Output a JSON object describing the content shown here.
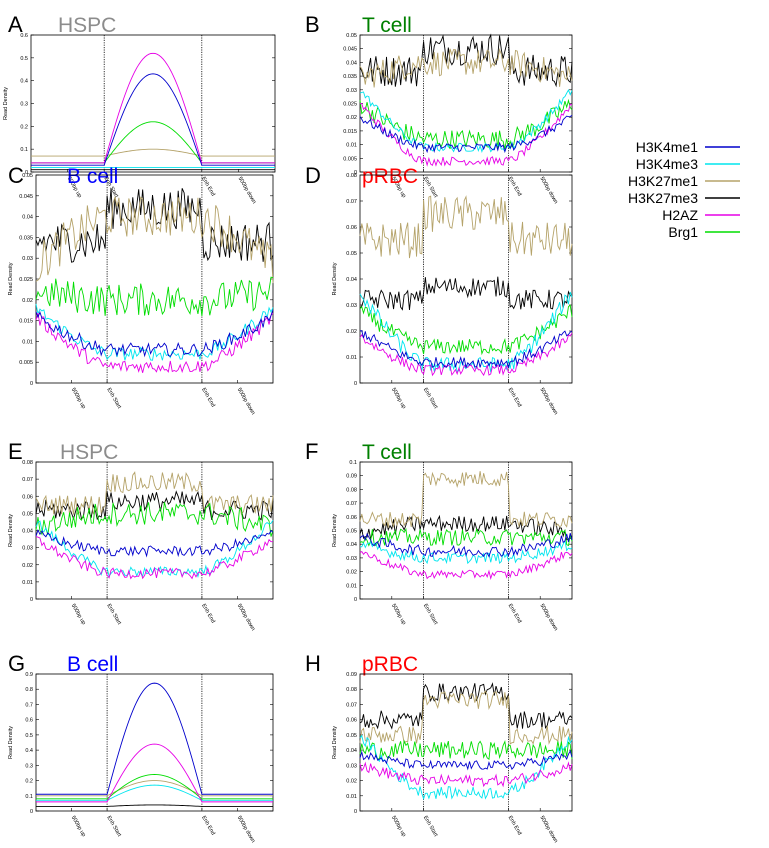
{
  "chart_data": [
    {
      "panel": "A",
      "title": "HSPC",
      "title_color": "#8c8c8c",
      "type": "line",
      "ylabel": "Read Density",
      "ylim": [
        0,
        0.6
      ],
      "yticks": [
        0,
        0.1,
        0.2,
        0.3,
        0.4,
        0.5,
        0.6
      ],
      "x_tick_labels": [
        "500bp up",
        "Enh Start",
        "Enh End",
        "500bp down"
      ],
      "enh_region": [
        30,
        70
      ],
      "series": [
        {
          "key": "H3K4me1",
          "profile": "bump",
          "flank": 0.03,
          "peak": 0.43,
          "noise": 0
        },
        {
          "key": "H3K4me3",
          "profile": "bump",
          "flank": 0.02,
          "peak": 0.02,
          "noise": 0
        },
        {
          "key": "H3K27me1",
          "profile": "bump",
          "flank": 0.07,
          "peak": 0.1,
          "noise": 0
        },
        {
          "key": "H3K27me3",
          "profile": "bump",
          "flank": 0.01,
          "peak": 0.01,
          "noise": 0
        },
        {
          "key": "H2AZ",
          "profile": "bump",
          "flank": 0.04,
          "peak": 0.52,
          "noise": 0
        },
        {
          "key": "Brg1",
          "profile": "bump",
          "flank": 0.04,
          "peak": 0.22,
          "noise": 0
        }
      ]
    },
    {
      "panel": "B",
      "title": "T cell",
      "title_color": "#008000",
      "type": "line",
      "ylabel": "",
      "ylim": [
        0,
        0.05
      ],
      "yticks": [
        0,
        0.005,
        0.01,
        0.015,
        0.02,
        0.025,
        0.03,
        0.035,
        0.04,
        0.045,
        0.05
      ],
      "x_tick_labels": [
        "500bp up",
        "Enh Start",
        "Enh End",
        "500bp down"
      ],
      "enh_region": [
        30,
        70
      ],
      "series": [
        {
          "key": "H3K4me1",
          "profile": "valley",
          "flank": 0.02,
          "peak": 0.009,
          "noise": 0.0008
        },
        {
          "key": "H3K4me3",
          "profile": "valley",
          "flank": 0.03,
          "peak": 0.009,
          "noise": 0.0008
        },
        {
          "key": "H3K27me1",
          "profile": "valley",
          "flank": 0.034,
          "peak": 0.04,
          "noise": 0.0025
        },
        {
          "key": "H3K27me3",
          "profile": "flat",
          "flank": 0.037,
          "peak": 0.045,
          "noise": 0.003
        },
        {
          "key": "H2AZ",
          "profile": "valley",
          "flank": 0.025,
          "peak": 0.004,
          "noise": 0.0008
        },
        {
          "key": "Brg1",
          "profile": "valley",
          "flank": 0.025,
          "peak": 0.012,
          "noise": 0.0018
        }
      ]
    },
    {
      "panel": "C",
      "title": "B cell",
      "title_color": "#0000ff",
      "type": "line",
      "ylabel": "Read Density",
      "ylim": [
        0,
        0.05
      ],
      "yticks": [
        0,
        0.005,
        0.01,
        0.015,
        0.02,
        0.025,
        0.03,
        0.035,
        0.04,
        0.045,
        0.05
      ],
      "x_tick_labels": [
        "500bp up",
        "Enh Start",
        "Enh End",
        "500bp down"
      ],
      "enh_region": [
        30,
        70
      ],
      "series": [
        {
          "key": "H3K4me1",
          "profile": "valley",
          "flank": 0.016,
          "peak": 0.008,
          "noise": 0.0008
        },
        {
          "key": "H3K4me3",
          "profile": "valley",
          "flank": 0.018,
          "peak": 0.007,
          "noise": 0.0008
        },
        {
          "key": "H3K27me1",
          "profile": "valley",
          "flank": 0.028,
          "peak": 0.04,
          "noise": 0.0025
        },
        {
          "key": "H3K27me3",
          "profile": "flat",
          "flank": 0.034,
          "peak": 0.042,
          "noise": 0.0025
        },
        {
          "key": "H2AZ",
          "profile": "valley",
          "flank": 0.016,
          "peak": 0.004,
          "noise": 0.0008
        },
        {
          "key": "Brg1",
          "profile": "valley",
          "flank": 0.022,
          "peak": 0.02,
          "noise": 0.002
        }
      ]
    },
    {
      "panel": "D",
      "title": "pRBC",
      "title_color": "#ff0000",
      "type": "line",
      "ylabel": "Read Density",
      "ylim": [
        0,
        0.08
      ],
      "yticks": [
        0,
        0.01,
        0.02,
        0.03,
        0.04,
        0.05,
        0.06,
        0.07,
        0.08
      ],
      "x_tick_labels": [
        "500bp up",
        "Enh Start",
        "Enh End",
        "500bp down"
      ],
      "enh_region": [
        30,
        70
      ],
      "series": [
        {
          "key": "H3K4me1",
          "profile": "valley",
          "flank": 0.02,
          "peak": 0.008,
          "noise": 0.001
        },
        {
          "key": "H3K4me3",
          "profile": "valley",
          "flank": 0.035,
          "peak": 0.007,
          "noise": 0.0015
        },
        {
          "key": "H3K27me1",
          "profile": "flat",
          "flank": 0.055,
          "peak": 0.065,
          "noise": 0.0035
        },
        {
          "key": "H3K27me3",
          "profile": "flat",
          "flank": 0.032,
          "peak": 0.037,
          "noise": 0.002
        },
        {
          "key": "H2AZ",
          "profile": "valley",
          "flank": 0.018,
          "peak": 0.005,
          "noise": 0.001
        },
        {
          "key": "Brg1",
          "profile": "valley",
          "flank": 0.028,
          "peak": 0.014,
          "noise": 0.0015
        }
      ]
    },
    {
      "panel": "E",
      "title": "HSPC",
      "title_color": "#8c8c8c",
      "type": "line",
      "ylabel": "Read Density",
      "ylim": [
        0,
        0.08
      ],
      "yticks": [
        0,
        0.01,
        0.02,
        0.03,
        0.04,
        0.05,
        0.06,
        0.07,
        0.08
      ],
      "x_tick_labels": [
        "500bp up",
        "Enh Start",
        "Enh End",
        "500bp down"
      ],
      "enh_region": [
        30,
        70
      ],
      "series": [
        {
          "key": "H3K4me1",
          "profile": "valley",
          "flank": 0.038,
          "peak": 0.028,
          "noise": 0.0015
        },
        {
          "key": "H3K4me3",
          "profile": "valley",
          "flank": 0.045,
          "peak": 0.016,
          "noise": 0.0015
        },
        {
          "key": "H3K27me1",
          "profile": "flat",
          "flank": 0.055,
          "peak": 0.068,
          "noise": 0.003
        },
        {
          "key": "H3K27me3",
          "profile": "flat",
          "flank": 0.052,
          "peak": 0.057,
          "noise": 0.003
        },
        {
          "key": "H2AZ",
          "profile": "valley",
          "flank": 0.035,
          "peak": 0.015,
          "noise": 0.0015
        },
        {
          "key": "Brg1",
          "profile": "valley",
          "flank": 0.042,
          "peak": 0.05,
          "noise": 0.0035
        }
      ]
    },
    {
      "panel": "F",
      "title": "T cell",
      "title_color": "#008000",
      "type": "line",
      "ylabel": "Read Density",
      "ylim": [
        0,
        0.1
      ],
      "yticks": [
        0,
        0.01,
        0.02,
        0.03,
        0.04,
        0.05,
        0.06,
        0.07,
        0.08,
        0.09,
        0.1
      ],
      "x_tick_labels": [
        "500bp up",
        "Enh Start",
        "Enh End",
        "500bp down"
      ],
      "enh_region": [
        30,
        70
      ],
      "series": [
        {
          "key": "H3K4me1",
          "profile": "valley",
          "flank": 0.045,
          "peak": 0.035,
          "noise": 0.002
        },
        {
          "key": "H3K4me3",
          "profile": "valley",
          "flank": 0.04,
          "peak": 0.03,
          "noise": 0.002
        },
        {
          "key": "H3K27me1",
          "profile": "flat",
          "flank": 0.058,
          "peak": 0.088,
          "noise": 0.003
        },
        {
          "key": "H3K27me3",
          "profile": "valley",
          "flank": 0.048,
          "peak": 0.055,
          "noise": 0.003
        },
        {
          "key": "H2AZ",
          "profile": "valley",
          "flank": 0.035,
          "peak": 0.018,
          "noise": 0.0015
        },
        {
          "key": "Brg1",
          "profile": "valley",
          "flank": 0.045,
          "peak": 0.045,
          "noise": 0.003
        }
      ]
    },
    {
      "panel": "G",
      "title": "B cell",
      "title_color": "#0000ff",
      "type": "line",
      "ylabel": "Read Density",
      "ylim": [
        0,
        0.9
      ],
      "yticks": [
        0,
        0.1,
        0.2,
        0.3,
        0.4,
        0.5,
        0.6,
        0.7,
        0.8,
        0.9
      ],
      "x_tick_labels": [
        "500bp up",
        "Enh Start",
        "Enh End",
        "500bp down"
      ],
      "enh_region": [
        30,
        70
      ],
      "series": [
        {
          "key": "H3K4me1",
          "profile": "bump",
          "flank": 0.11,
          "peak": 0.84,
          "noise": 0
        },
        {
          "key": "H3K4me3",
          "profile": "bump",
          "flank": 0.07,
          "peak": 0.17,
          "noise": 0
        },
        {
          "key": "H3K27me1",
          "profile": "bump",
          "flank": 0.1,
          "peak": 0.2,
          "noise": 0
        },
        {
          "key": "H3K27me3",
          "profile": "bump",
          "flank": 0.03,
          "peak": 0.04,
          "noise": 0
        },
        {
          "key": "H2AZ",
          "profile": "bump",
          "flank": 0.06,
          "peak": 0.44,
          "noise": 0
        },
        {
          "key": "Brg1",
          "profile": "bump",
          "flank": 0.08,
          "peak": 0.24,
          "noise": 0
        }
      ]
    },
    {
      "panel": "H",
      "title": "pRBC",
      "title_color": "#ff0000",
      "type": "line",
      "ylabel": "Read Density",
      "ylim": [
        0,
        0.09
      ],
      "yticks": [
        0,
        0.01,
        0.02,
        0.03,
        0.04,
        0.05,
        0.06,
        0.07,
        0.08,
        0.09
      ],
      "x_tick_labels": [
        "500bp up",
        "Enh Start",
        "Enh End",
        "500bp down"
      ],
      "enh_region": [
        30,
        70
      ],
      "series": [
        {
          "key": "H3K4me1",
          "profile": "valley",
          "flank": 0.037,
          "peak": 0.03,
          "noise": 0.0015
        },
        {
          "key": "H3K4me3",
          "profile": "valley",
          "flank": 0.05,
          "peak": 0.012,
          "noise": 0.002
        },
        {
          "key": "H3K27me1",
          "profile": "flat",
          "flank": 0.05,
          "peak": 0.073,
          "noise": 0.003
        },
        {
          "key": "H3K27me3",
          "profile": "flat",
          "flank": 0.06,
          "peak": 0.078,
          "noise": 0.003
        },
        {
          "key": "H2AZ",
          "profile": "valley",
          "flank": 0.03,
          "peak": 0.02,
          "noise": 0.0018
        },
        {
          "key": "Brg1",
          "profile": "valley",
          "flank": 0.04,
          "peak": 0.04,
          "noise": 0.003
        }
      ]
    }
  ],
  "legend": [
    {
      "key": "H3K4me1",
      "label": "H3K4me1",
      "color": "#0000cc"
    },
    {
      "key": "H3K4me3",
      "label": "H3K4me3",
      "color": "#00e5ee"
    },
    {
      "key": "H3K27me1",
      "label": "H3K27me1",
      "color": "#b5a36a"
    },
    {
      "key": "H3K27me3",
      "label": "H3K27me3",
      "color": "#000000"
    },
    {
      "key": "H2AZ",
      "label": "H2AZ",
      "color": "#e600e6"
    },
    {
      "key": "Brg1",
      "label": "Brg1",
      "color": "#00dd00"
    }
  ]
}
